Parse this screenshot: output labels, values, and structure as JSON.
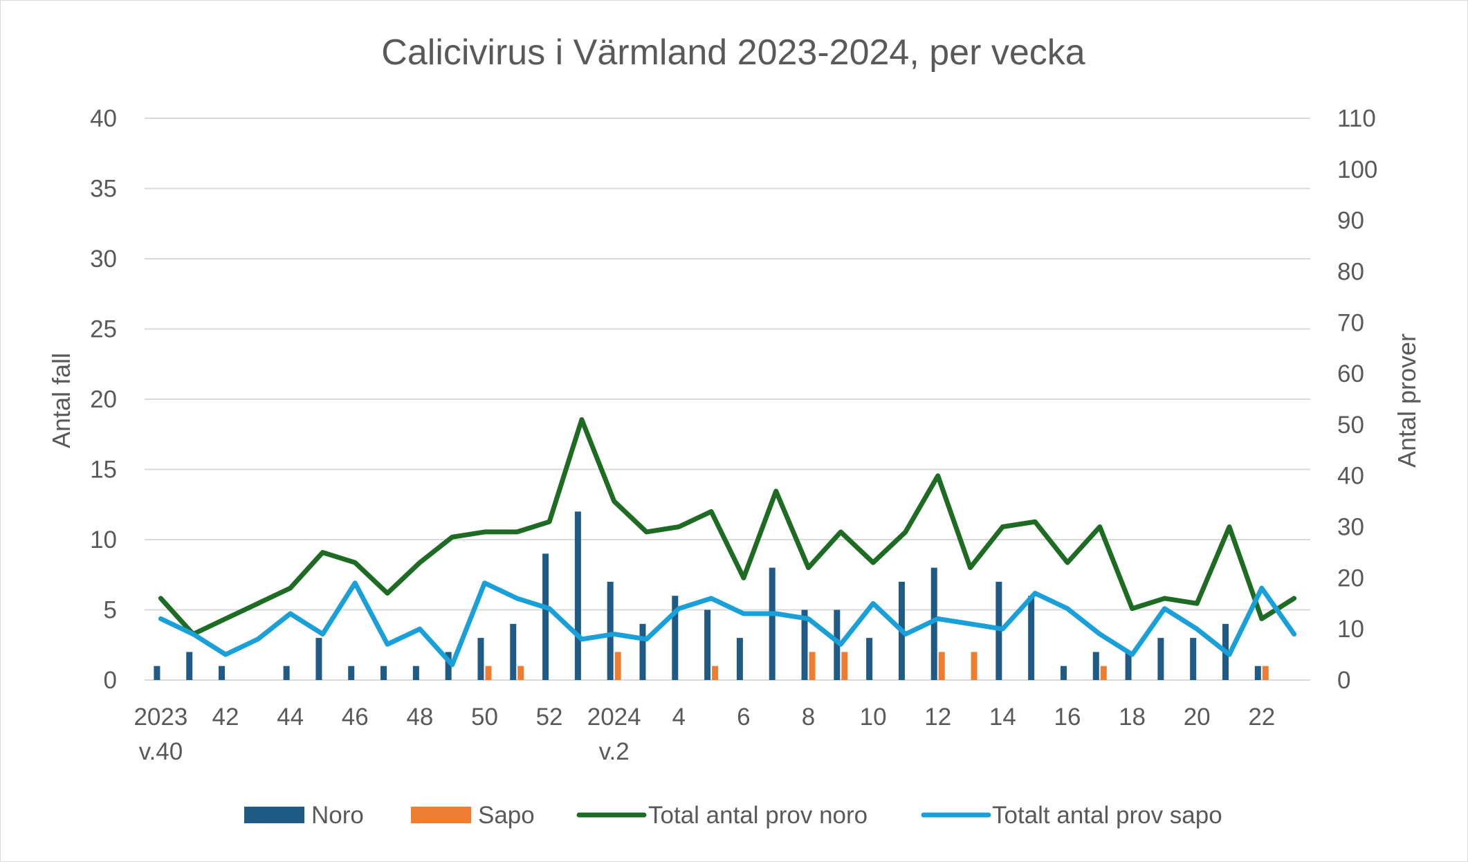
{
  "chart_data": {
    "type": "bar",
    "title": "Calicivirus i Värmland 2023-2024, per vecka",
    "ylabel_left": "Antal fall",
    "ylabel_right": "Antal prover",
    "ylim_left": [
      0,
      40
    ],
    "ylim_right": [
      0,
      110
    ],
    "yticks_left": [
      "0",
      "5",
      "10",
      "15",
      "20",
      "25",
      "30",
      "35",
      "40"
    ],
    "yticks_right": [
      "0",
      "10",
      "20",
      "30",
      "40",
      "50",
      "60",
      "70",
      "80",
      "90",
      "100",
      "110"
    ],
    "grid": true,
    "legend_position": "bottom",
    "x_labels": [
      {
        "index": 0,
        "line1": "2023",
        "line2": "v.40"
      },
      {
        "index": 2,
        "line1": "42",
        "line2": ""
      },
      {
        "index": 4,
        "line1": "44",
        "line2": ""
      },
      {
        "index": 6,
        "line1": "46",
        "line2": ""
      },
      {
        "index": 8,
        "line1": "48",
        "line2": ""
      },
      {
        "index": 10,
        "line1": "50",
        "line2": ""
      },
      {
        "index": 12,
        "line1": "52",
        "line2": ""
      },
      {
        "index": 14,
        "line1": "2024",
        "line2": "v.2"
      },
      {
        "index": 16,
        "line1": "4",
        "line2": ""
      },
      {
        "index": 18,
        "line1": "6",
        "line2": ""
      },
      {
        "index": 20,
        "line1": "8",
        "line2": ""
      },
      {
        "index": 22,
        "line1": "10",
        "line2": ""
      },
      {
        "index": 24,
        "line1": "12",
        "line2": ""
      },
      {
        "index": 26,
        "line1": "14",
        "line2": ""
      },
      {
        "index": 28,
        "line1": "16",
        "line2": ""
      },
      {
        "index": 30,
        "line1": "18",
        "line2": ""
      },
      {
        "index": 32,
        "line1": "20",
        "line2": ""
      },
      {
        "index": 34,
        "line1": "22",
        "line2": ""
      }
    ],
    "series": [
      {
        "name": "Noro",
        "type": "bar",
        "axis": "left",
        "color": "#1f5b84",
        "values": [
          1,
          2,
          1,
          0,
          1,
          3,
          1,
          1,
          1,
          2,
          3,
          4,
          9,
          12,
          7,
          4,
          6,
          5,
          3,
          8,
          5,
          5,
          3,
          7,
          8,
          0,
          7,
          6,
          1,
          2,
          2,
          3,
          3,
          4,
          1,
          0
        ]
      },
      {
        "name": "Sapo",
        "type": "bar",
        "axis": "left",
        "color": "#ed7d31",
        "values": [
          0,
          0,
          0,
          0,
          0,
          0,
          0,
          0,
          0,
          0,
          1,
          1,
          0,
          0,
          2,
          0,
          0,
          1,
          0,
          0,
          2,
          2,
          0,
          0,
          2,
          2,
          0,
          0,
          0,
          1,
          0,
          0,
          0,
          0,
          1,
          0
        ]
      },
      {
        "name": "Total antal prov noro",
        "type": "line",
        "axis": "right",
        "color": "#1e6b24",
        "values": [
          16,
          9,
          12,
          15,
          18,
          25,
          23,
          17,
          23,
          28,
          29,
          29,
          31,
          51,
          35,
          29,
          30,
          33,
          20,
          37,
          22,
          29,
          23,
          29,
          40,
          22,
          30,
          31,
          23,
          30,
          14,
          16,
          15,
          30,
          12,
          16
        ]
      },
      {
        "name": "Totalt antal prov sapo",
        "type": "line",
        "axis": "right",
        "color": "#1aa0d8",
        "values": [
          12,
          9,
          5,
          8,
          13,
          9,
          19,
          7,
          10,
          3,
          19,
          16,
          14,
          8,
          9,
          8,
          14,
          16,
          13,
          13,
          12,
          7,
          15,
          9,
          12,
          11,
          10,
          17,
          14,
          9,
          5,
          14,
          10,
          5,
          18,
          9
        ]
      }
    ]
  }
}
